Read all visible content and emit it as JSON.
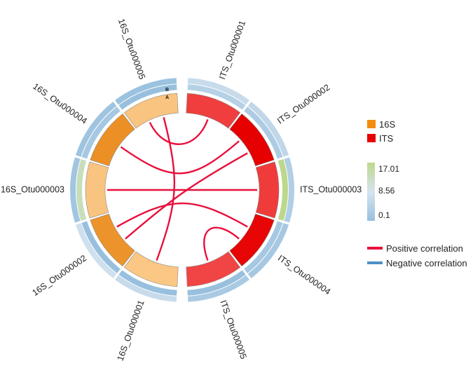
{
  "chart_data": {
    "type": "chord",
    "title": "",
    "nodes": [
      {
        "id": "ITS_Otu000001",
        "group": "ITS",
        "inner_value": 10.2,
        "track_a": 4.0,
        "track_b": 6.5
      },
      {
        "id": "ITS_Otu000002",
        "group": "ITS",
        "inner_value": 17.01,
        "track_a": 3.0,
        "track_b": 5.5
      },
      {
        "id": "ITS_Otu000003",
        "group": "ITS",
        "inner_value": 10.5,
        "track_a": 17.01,
        "track_b": 3.5
      },
      {
        "id": "ITS_Otu000004",
        "group": "ITS",
        "inner_value": 16.5,
        "track_a": 2.0,
        "track_b": 2.0
      },
      {
        "id": "ITS_Otu000005",
        "group": "ITS",
        "inner_value": 9.5,
        "track_a": 0.1,
        "track_b": 2.5
      },
      {
        "id": "16S_Otu000001",
        "group": "16S",
        "inner_value": 4.0,
        "track_a": 0.1,
        "track_b": 6.5
      },
      {
        "id": "16S_Otu000002",
        "group": "16S",
        "inner_value": 13.5,
        "track_a": 0.1,
        "track_b": 7.5
      },
      {
        "id": "16S_Otu000003",
        "group": "16S",
        "inner_value": 4.5,
        "track_a": 13.0,
        "track_b": 1.5
      },
      {
        "id": "16S_Otu000004",
        "group": "16S",
        "inner_value": 14.0,
        "track_a": 2.0,
        "track_b": 1.0
      },
      {
        "id": "16S_Otu000005",
        "group": "16S",
        "inner_value": 4.5,
        "track_a": 0.1,
        "track_b": 0.5
      }
    ],
    "links": [
      {
        "source": "16S_Otu000005",
        "target": "ITS_Otu000001",
        "type": "positive"
      },
      {
        "source": "16S_Otu000005",
        "target": "16S_Otu000001",
        "type": "positive"
      },
      {
        "source": "16S_Otu000004",
        "target": "ITS_Otu000002",
        "type": "positive"
      },
      {
        "source": "16S_Otu000003",
        "target": "ITS_Otu000003",
        "type": "positive"
      },
      {
        "source": "16S_Otu000002",
        "target": "ITS_Otu000002",
        "type": "positive"
      },
      {
        "source": "16S_Otu000002",
        "target": "ITS_Otu000004",
        "type": "positive"
      },
      {
        "source": "ITS_Otu000004",
        "target": "ITS_Otu000005",
        "type": "positive"
      }
    ],
    "groups": [
      {
        "name": "16S",
        "color": "#f28c0f"
      },
      {
        "name": "ITS",
        "color": "#e60000"
      }
    ],
    "track_letters": [
      "B",
      "A"
    ],
    "color_scale": {
      "min": 0.1,
      "mid": 8.56,
      "max": 17.01,
      "colors": [
        "#98c0de",
        "#d6e4ef",
        "#bcd88c"
      ]
    },
    "inner_scale_colors": {
      "16S": [
        "#ffdca8",
        "#e8800a"
      ],
      "ITS": [
        "#ff9a9a",
        "#e60000"
      ]
    },
    "legend": {
      "positive_label": "Positive correlation",
      "negative_label": "Negative correlation",
      "positive_color": "#e8103c",
      "negative_color": "#4f8fc6"
    }
  }
}
